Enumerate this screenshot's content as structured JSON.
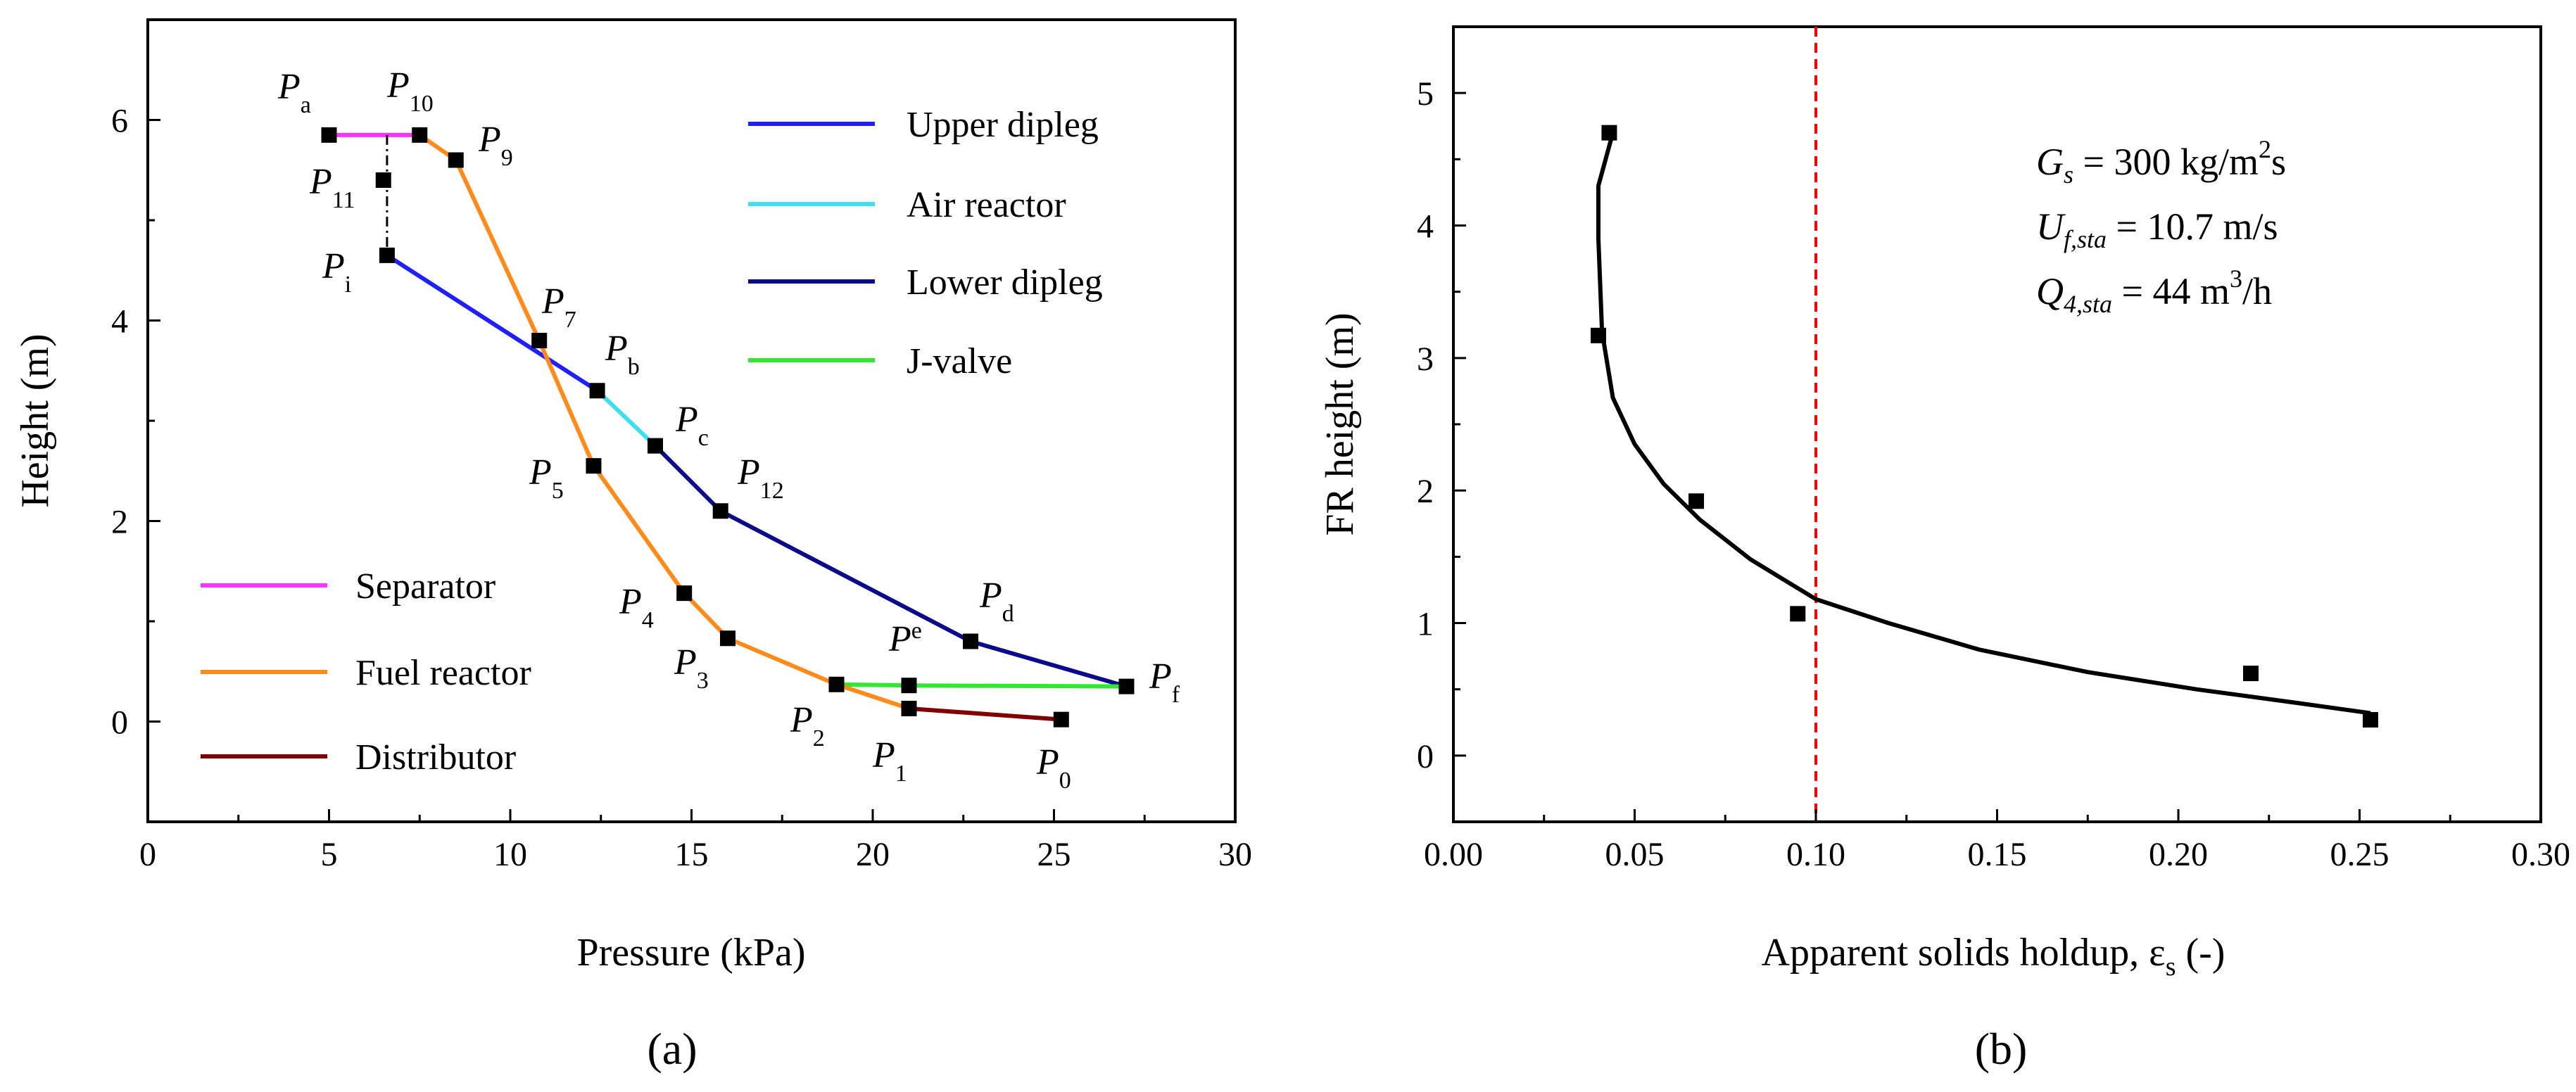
{
  "chart_data": [
    {
      "type": "line",
      "panel_caption": "(a)",
      "xlabel": "Pressure (kPa)",
      "ylabel": "Height (m)",
      "xlim": [
        0,
        30
      ],
      "ylim": [
        -1,
        7
      ],
      "xticks": [
        "0",
        "5",
        "10",
        "15",
        "20",
        "25",
        "30"
      ],
      "yticks": [
        "0",
        "2",
        "4",
        "6"
      ],
      "series": [
        {
          "name": "Upper dipleg",
          "color": "#1f1fff",
          "x": [
            6.6,
            12.4
          ],
          "y": [
            4.65,
            3.3
          ]
        },
        {
          "name": "Air reactor",
          "color": "#3ee0f0",
          "x": [
            12.4,
            14.0
          ],
          "y": [
            3.3,
            2.75
          ]
        },
        {
          "name": "Lower dipleg",
          "color": "#0a0a8a",
          "x": [
            14.0,
            15.8,
            22.7,
            27.0
          ],
          "y": [
            2.75,
            2.1,
            0.8,
            0.35
          ]
        },
        {
          "name": "J-valve",
          "color": "#33e633",
          "x": [
            19.0,
            21.0,
            27.0
          ],
          "y": [
            0.37,
            0.36,
            0.35
          ]
        },
        {
          "name": "Separator",
          "color": "#ff33ff",
          "x": [
            5.0,
            7.5
          ],
          "y": [
            5.85,
            5.85
          ]
        },
        {
          "name": "Fuel reactor",
          "color": "#ff8c1a",
          "x": [
            7.5,
            8.5,
            10.8,
            12.3,
            14.8,
            16.0,
            19.0,
            21.0
          ],
          "y": [
            5.85,
            5.6,
            3.8,
            2.55,
            1.28,
            0.83,
            0.37,
            0.13
          ]
        },
        {
          "name": "Distributor",
          "color": "#800000",
          "x": [
            21.0,
            25.2
          ],
          "y": [
            0.13,
            0.02
          ]
        }
      ],
      "dashdot": {
        "x": [
          6.6,
          6.6
        ],
        "y": [
          5.85,
          4.65
        ]
      },
      "markers": {
        "x": [
          5.0,
          7.5,
          8.5,
          6.5,
          6.6,
          10.8,
          12.4,
          14.0,
          15.8,
          12.3,
          14.8,
          16.0,
          22.7,
          21.0,
          27.0,
          19.0,
          21.0,
          25.2
        ],
        "y": [
          5.85,
          5.85,
          5.6,
          5.4,
          4.65,
          3.8,
          3.3,
          2.75,
          2.1,
          2.55,
          1.28,
          0.83,
          0.8,
          0.36,
          0.35,
          0.37,
          0.13,
          0.02
        ]
      },
      "point_labels": [
        {
          "main": "P",
          "sub": "a"
        },
        {
          "main": "P",
          "sub": "10"
        },
        {
          "main": "P",
          "sub": "9"
        },
        {
          "main": "P",
          "sub": "11"
        },
        {
          "main": "P",
          "sub": "i"
        },
        {
          "main": "P",
          "sub": "7"
        },
        {
          "main": "P",
          "sub": "b"
        },
        {
          "main": "P",
          "sub": "c"
        },
        {
          "main": "P",
          "sub": "12"
        },
        {
          "main": "P",
          "sub": "5"
        },
        {
          "main": "P",
          "sub": "4"
        },
        {
          "main": "P",
          "sub": "3"
        },
        {
          "main": "P",
          "sub": "d"
        },
        {
          "main": "P",
          "sub": "e"
        },
        {
          "main": "P",
          "sub": "f"
        },
        {
          "main": "P",
          "sub": "2"
        },
        {
          "main": "P",
          "sub": "1"
        },
        {
          "main": "P",
          "sub": "0"
        }
      ],
      "legend_top": [
        "Upper dipleg",
        "Air reactor",
        "Lower dipleg",
        "J-valve"
      ],
      "legend_bottom": [
        "Separator",
        "Fuel reactor",
        "Distributor"
      ]
    },
    {
      "type": "scatter",
      "panel_caption": "(b)",
      "xlabel_main": "Apparent solids holdup, ε",
      "xlabel_sub": "s",
      "xlabel_tail": " (-)",
      "ylabel": "FR height (m)",
      "xlim": [
        0,
        0.3
      ],
      "ylim": [
        -0.5,
        5.5
      ],
      "xticks": [
        "0.00",
        "0.05",
        "0.10",
        "0.15",
        "0.20",
        "0.25",
        "0.30"
      ],
      "yticks": [
        "0",
        "1",
        "2",
        "3",
        "4",
        "5"
      ],
      "points": {
        "x": [
          0.043,
          0.04,
          0.067,
          0.095,
          0.22,
          0.253
        ],
        "y": [
          4.7,
          3.17,
          1.92,
          1.07,
          0.62,
          0.27
        ]
      },
      "fit_curve": {
        "x": [
          0.044,
          0.04,
          0.04,
          0.041,
          0.044,
          0.05,
          0.058,
          0.068,
          0.082,
          0.1,
          0.12,
          0.145,
          0.175,
          0.205,
          0.232,
          0.253
        ],
        "y": [
          4.7,
          4.3,
          3.9,
          3.2,
          2.7,
          2.35,
          2.05,
          1.78,
          1.48,
          1.18,
          1.0,
          0.8,
          0.63,
          0.5,
          0.4,
          0.32
        ]
      },
      "reference_line_x": 0.1,
      "reference_line_color": "#ff0000",
      "annotations": {
        "gs": {
          "main": "G",
          "sub": "s",
          "text": " = 300 kg/m",
          "sup": "2",
          "tail": "s"
        },
        "uf": {
          "main": "U",
          "sub": "f,sta",
          "text": " = 10.7 m/s"
        },
        "q4": {
          "main": "Q",
          "sub": "4,sta",
          "text": " = 44 m",
          "sup": "3",
          "tail": "/h"
        }
      }
    }
  ]
}
